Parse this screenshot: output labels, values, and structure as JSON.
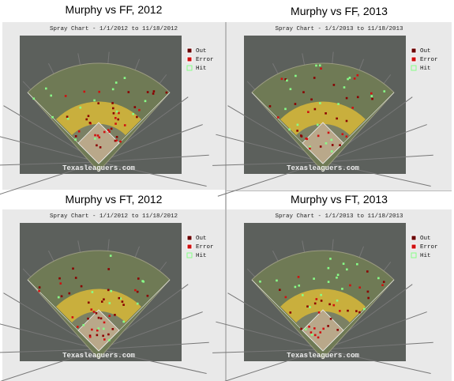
{
  "panels": [
    {
      "title": "Murphy vs FF, 2012",
      "subtitle": "Spray Chart - 1/1/2012 to 11/18/2012",
      "legend": [
        "Out",
        "Error",
        "Hit"
      ],
      "watermark": "Texasleaguers.com"
    },
    {
      "title": "Murphy vs FF, 2013",
      "subtitle": "Spray Chart - 1/1/2013 to 11/18/2013",
      "legend": [
        "Out",
        "Error",
        "Hit"
      ],
      "watermark": "Texasleaguers.com"
    },
    {
      "title": "Murphy vs FT, 2012",
      "subtitle": "Spray Chart - 1/1/2012 to 11/18/2012",
      "legend": [
        "Out",
        "Error",
        "Hit"
      ],
      "watermark": "Texasleaguers.com"
    },
    {
      "title": "Murphy vs FT, 2013",
      "subtitle": "Spray Chart - 1/1/2013 to 11/18/2013",
      "legend": [
        "Out",
        "Error",
        "Hit"
      ],
      "watermark": "Texasleaguers.com"
    }
  ]
}
